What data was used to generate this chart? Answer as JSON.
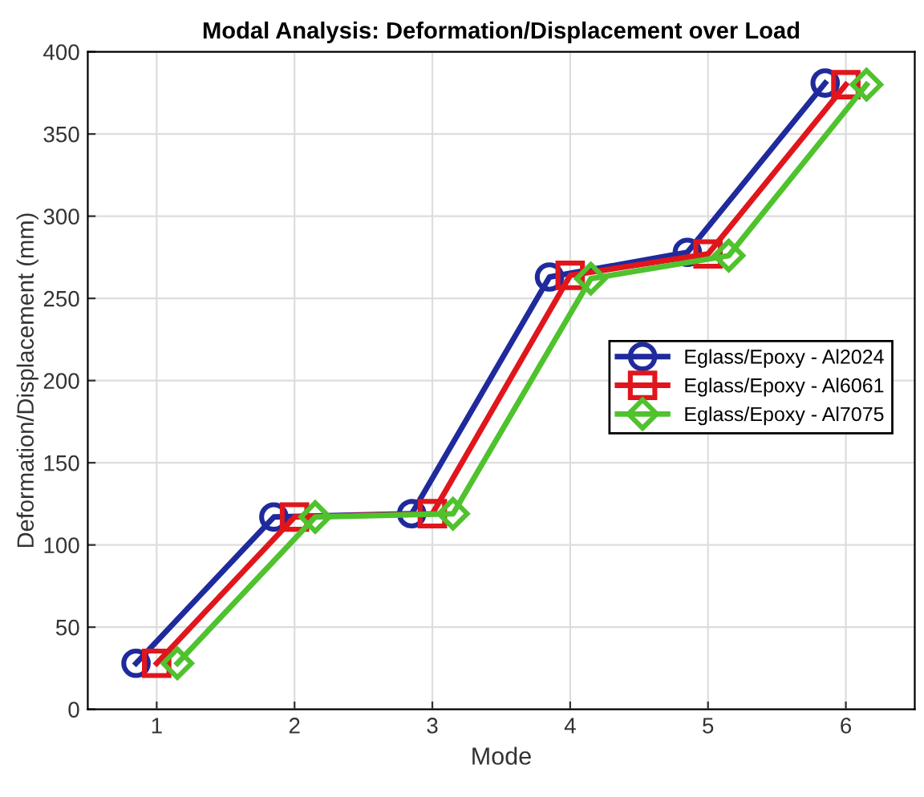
{
  "chart_data": {
    "type": "line",
    "title": "Modal Analysis: Deformation/Displacement over Load",
    "xlabel": "Mode",
    "ylabel": "Deformation/Displacement (mm)",
    "series": [
      {
        "name": "Eglass/Epoxy - Al2024",
        "color": "#1f2a9c",
        "marker": "circle",
        "x": [
          0.85,
          1.85,
          2.85,
          3.85,
          4.85,
          5.85
        ],
        "values": [
          28,
          117,
          119,
          263,
          278,
          381
        ]
      },
      {
        "name": "Eglass/Epoxy - Al6061",
        "color": "#e0161c",
        "marker": "square",
        "x": [
          1,
          2,
          3,
          4,
          5,
          6
        ],
        "values": [
          28,
          117,
          119,
          264,
          277,
          380
        ]
      },
      {
        "name": "Eglass/Epoxy - Al7075",
        "color": "#4fc22d",
        "marker": "diamond",
        "x": [
          1.15,
          2.15,
          3.15,
          4.15,
          5.15,
          6.15
        ],
        "values": [
          28,
          117,
          119,
          262,
          276,
          380
        ]
      }
    ],
    "xlim": [
      0.5,
      6.5
    ],
    "xticks": [
      1,
      2,
      3,
      4,
      5,
      6
    ],
    "ylim": [
      0,
      400
    ],
    "yticks": [
      0,
      50,
      100,
      150,
      200,
      250,
      300,
      350,
      400
    ],
    "grid": true,
    "legend": "right",
    "line_style": "solid"
  }
}
